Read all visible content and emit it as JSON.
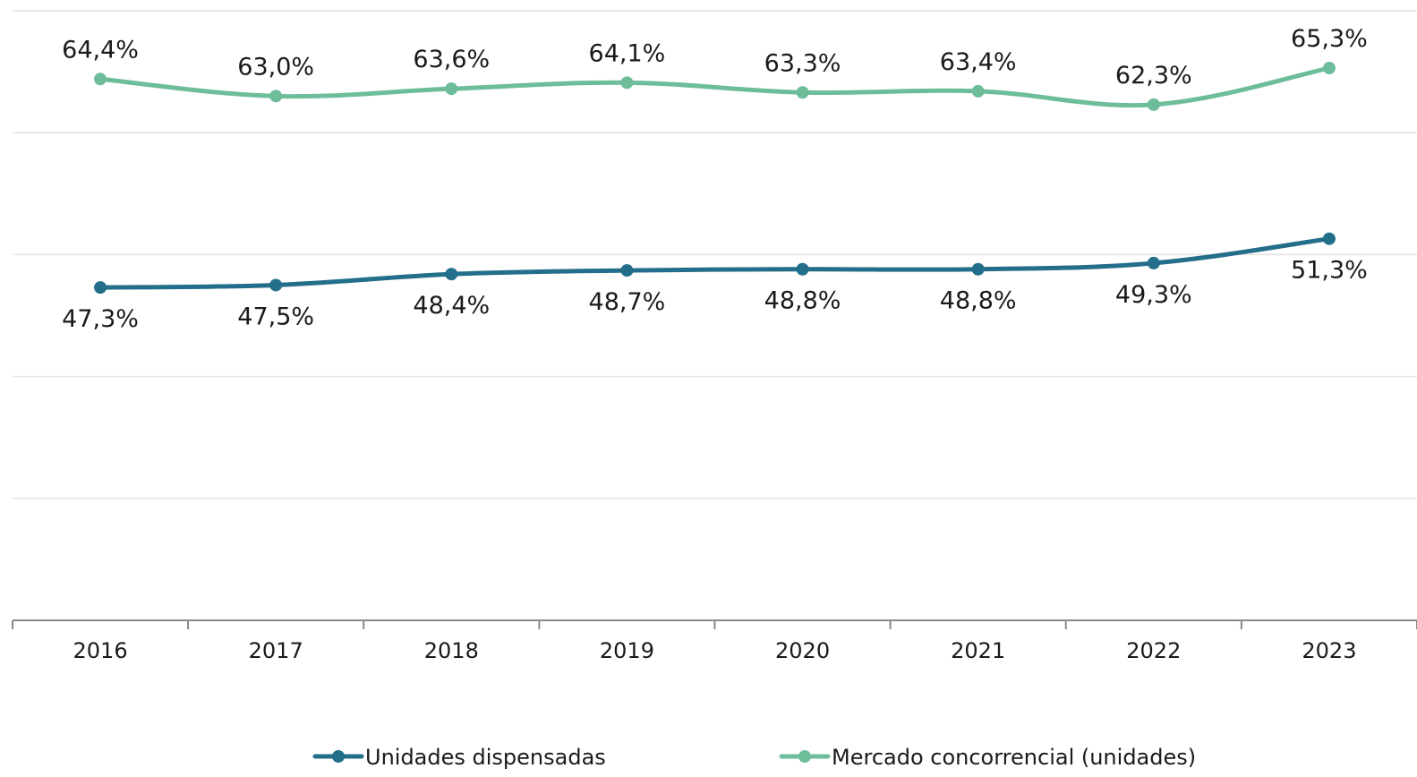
{
  "chart_data": {
    "type": "line",
    "categories": [
      "2016",
      "2017",
      "2018",
      "2019",
      "2020",
      "2021",
      "2022",
      "2023"
    ],
    "ylim": [
      20,
      70
    ],
    "grid": true,
    "legend_position": "bottom",
    "series": [
      {
        "name": "Unidades dispensadas",
        "color": "#236e8a",
        "values": [
          47.3,
          47.5,
          48.4,
          48.7,
          48.8,
          48.8,
          49.3,
          51.3
        ],
        "labels": [
          "47,3%",
          "47,5%",
          "48,4%",
          "48,7%",
          "48,8%",
          "48,8%",
          "49,3%",
          "51,3%"
        ],
        "label_position": "below"
      },
      {
        "name": "Mercado concorrencial (unidades)",
        "color": "#6dbd9b",
        "values": [
          64.4,
          63.0,
          63.6,
          64.1,
          63.3,
          63.4,
          62.3,
          65.3
        ],
        "labels": [
          "64,4%",
          "63,0%",
          "63,6%",
          "64,1%",
          "63,3%",
          "63,4%",
          "62,3%",
          "65,3%"
        ],
        "label_position": "above"
      }
    ]
  }
}
